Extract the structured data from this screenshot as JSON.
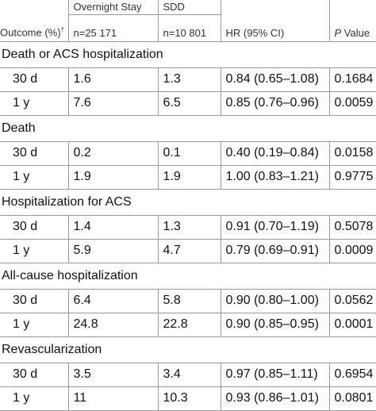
{
  "header": {
    "group_overnight": "Overnight Stay",
    "group_sdd": "SDD",
    "outcome_label": "Outcome (%)",
    "outcome_mark": "†",
    "n_overnight": "n=25 171",
    "n_sdd": "n=10 801",
    "hr_label": "HR (95% CI)",
    "p_italic": "P",
    "p_rest": " Value"
  },
  "sections": [
    {
      "title": "Death or ACS hospitalization",
      "rows": [
        {
          "label": "30 d",
          "overnight": "1.6",
          "sdd": "1.3",
          "hr": "0.84 (0.65–1.08)",
          "p": "0.1684"
        },
        {
          "label": "1 y",
          "overnight": "7.6",
          "sdd": "6.5",
          "hr": "0.85 (0.76–0.96)",
          "p": "0.0059"
        }
      ]
    },
    {
      "title": "Death",
      "rows": [
        {
          "label": "30 d",
          "overnight": "0.2",
          "sdd": "0.1",
          "hr": "0.40 (0.19–0.84)",
          "p": "0.0158"
        },
        {
          "label": "1 y",
          "overnight": "1.9",
          "sdd": "1.9",
          "hr": "1.00 (0.83–1.21)",
          "p": "0.9775"
        }
      ]
    },
    {
      "title": "Hospitalization for ACS",
      "rows": [
        {
          "label": "30 d",
          "overnight": "1.4",
          "sdd": "1.3",
          "hr": "0.91 (0.70–1.19)",
          "p": "0.5078"
        },
        {
          "label": "1 y",
          "overnight": "5.9",
          "sdd": "4.7",
          "hr": "0.79 (0.69–0.91)",
          "p": "0.0009"
        }
      ]
    },
    {
      "title": "All-cause hospitalization",
      "rows": [
        {
          "label": "30 d",
          "overnight": "6.4",
          "sdd": "5.8",
          "hr": "0.90 (0.80–1.00)",
          "p": "0.0562"
        },
        {
          "label": "1 y",
          "overnight": "24.8",
          "sdd": "22.8",
          "hr": "0.90 (0.85–0.95)",
          "p": "0.0001"
        }
      ]
    },
    {
      "title": "Revascularization",
      "rows": [
        {
          "label": "30 d",
          "overnight": "3.5",
          "sdd": "3.4",
          "hr": "0.97 (0.85–1.11)",
          "p": "0.6954"
        },
        {
          "label": "1 y",
          "overnight": "11",
          "sdd": "10.3",
          "hr": "0.93 (0.86–1.01)",
          "p": "0.0801"
        }
      ]
    }
  ]
}
